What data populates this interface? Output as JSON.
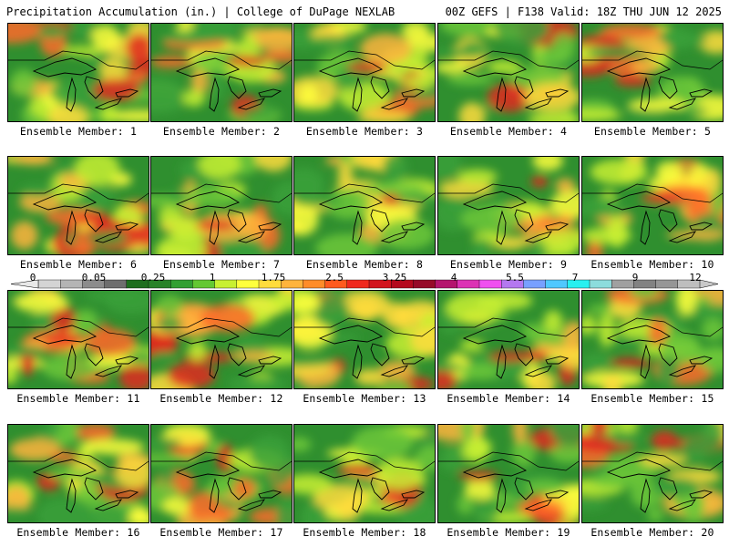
{
  "header": {
    "left": "Precipitation Accumulation (in.) | College of DuPage NEXLAB",
    "right": "00Z GEFS | F138 Valid: 18Z THU JUN 12 2025"
  },
  "panels": [
    {
      "label": "Ensemble Member: 1"
    },
    {
      "label": "Ensemble Member: 2"
    },
    {
      "label": "Ensemble Member: 3"
    },
    {
      "label": "Ensemble Member: 4"
    },
    {
      "label": "Ensemble Member: 5"
    },
    {
      "label": "Ensemble Member: 6"
    },
    {
      "label": "Ensemble Member: 7"
    },
    {
      "label": "Ensemble Member: 8"
    },
    {
      "label": "Ensemble Member: 9"
    },
    {
      "label": "Ensemble Member: 10"
    },
    {
      "label": "Ensemble Member: 11"
    },
    {
      "label": "Ensemble Member: 12"
    },
    {
      "label": "Ensemble Member: 13"
    },
    {
      "label": "Ensemble Member: 14"
    },
    {
      "label": "Ensemble Member: 15"
    },
    {
      "label": "Ensemble Member: 16"
    },
    {
      "label": "Ensemble Member: 17"
    },
    {
      "label": "Ensemble Member: 18"
    },
    {
      "label": "Ensemble Member: 19"
    },
    {
      "label": "Ensemble Member: 20"
    }
  ],
  "colorbar": {
    "labels": [
      "0",
      "0.05",
      "0.25",
      "1",
      "1.75",
      "2.5",
      "3.25",
      "4",
      "5.5",
      "7",
      "9",
      "12"
    ],
    "colors": [
      "#d4d4d4",
      "#b4b4b4",
      "#8c8c8c",
      "#6e6e6e",
      "#1e6e1e",
      "#288228",
      "#32a032",
      "#64c832",
      "#c8f032",
      "#ffff3c",
      "#ffdc3c",
      "#ffb43c",
      "#ff8c28",
      "#ff5a1e",
      "#f0281e",
      "#d2141e",
      "#b40a1e",
      "#960a28",
      "#b4146e",
      "#dc32b4",
      "#f050f0",
      "#b478f0",
      "#78a0ff",
      "#50c8ff",
      "#28f0f0",
      "#8cdcdc",
      "#a0a0a0",
      "#828282",
      "#969696",
      "#bebebe"
    ]
  }
}
